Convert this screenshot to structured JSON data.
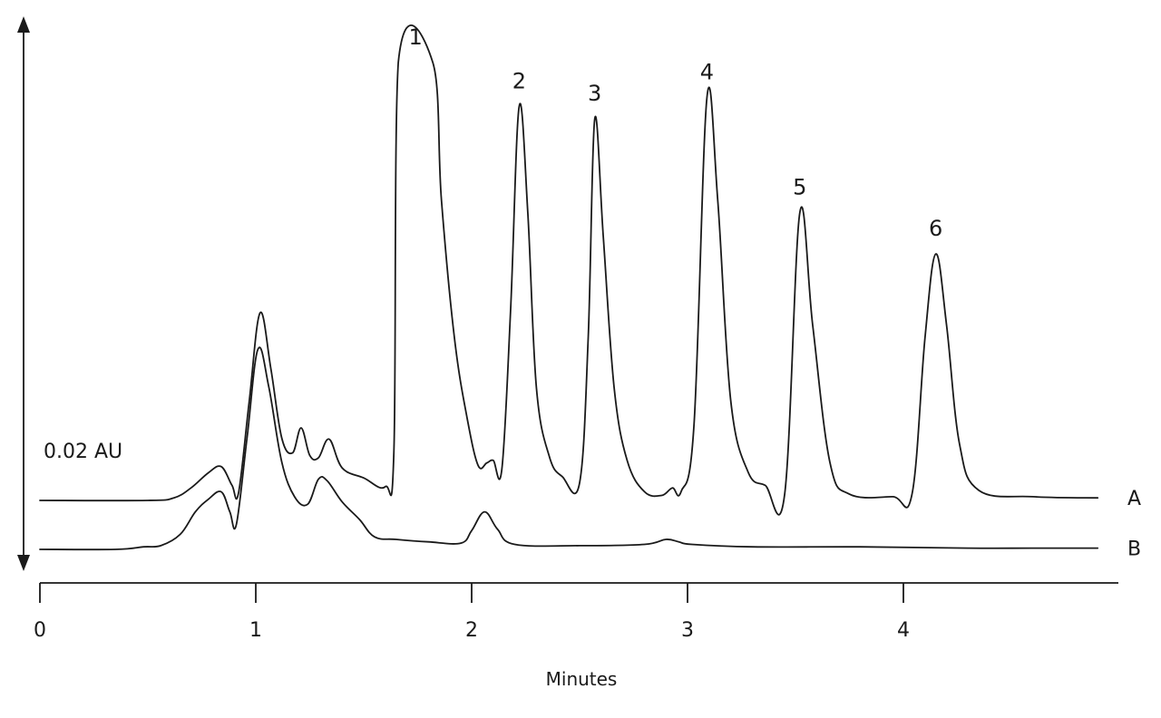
{
  "chart_data": {
    "type": "line",
    "title": "",
    "xlabel": "Minutes",
    "ylabel": "",
    "x_ticks": [
      "0",
      "1",
      "2",
      "3",
      "4"
    ],
    "xlim": [
      0,
      5
    ],
    "scale_bar_label": "0.02 AU",
    "series": [
      {
        "name": "A",
        "points": [
          [
            0.0,
            0.0
          ],
          [
            0.5,
            0.0
          ],
          [
            0.62,
            0.02
          ],
          [
            0.7,
            0.1
          ],
          [
            0.78,
            0.22
          ],
          [
            0.84,
            0.27
          ],
          [
            0.89,
            0.12
          ],
          [
            0.92,
            0.06
          ],
          [
            0.97,
            0.8
          ],
          [
            1.02,
            1.5
          ],
          [
            1.07,
            1.05
          ],
          [
            1.12,
            0.5
          ],
          [
            1.17,
            0.38
          ],
          [
            1.21,
            0.58
          ],
          [
            1.25,
            0.36
          ],
          [
            1.29,
            0.34
          ],
          [
            1.34,
            0.49
          ],
          [
            1.4,
            0.26
          ],
          [
            1.5,
            0.18
          ],
          [
            1.6,
            0.11
          ],
          [
            1.64,
            0.4
          ],
          [
            1.66,
            3.5
          ],
          [
            1.82,
            3.5
          ],
          [
            1.86,
            2.4
          ],
          [
            1.92,
            1.3
          ],
          [
            1.98,
            0.65
          ],
          [
            2.03,
            0.28
          ],
          [
            2.07,
            0.3
          ],
          [
            2.1,
            0.32
          ],
          [
            2.14,
            0.25
          ],
          [
            2.18,
            1.5
          ],
          [
            2.22,
            3.15
          ],
          [
            2.26,
            2.3
          ],
          [
            2.3,
            0.9
          ],
          [
            2.36,
            0.35
          ],
          [
            2.42,
            0.19
          ],
          [
            2.5,
            0.14
          ],
          [
            2.54,
            1.3
          ],
          [
            2.57,
            3.05
          ],
          [
            2.61,
            2.1
          ],
          [
            2.66,
            0.9
          ],
          [
            2.72,
            0.32
          ],
          [
            2.8,
            0.07
          ],
          [
            2.88,
            0.04
          ],
          [
            2.93,
            0.1
          ],
          [
            2.97,
            0.07
          ],
          [
            3.03,
            0.6
          ],
          [
            3.09,
            3.22
          ],
          [
            3.14,
            2.4
          ],
          [
            3.2,
            0.8
          ],
          [
            3.28,
            0.23
          ],
          [
            3.36,
            0.12
          ],
          [
            3.45,
            0.05
          ],
          [
            3.52,
            2.3
          ],
          [
            3.58,
            1.4
          ],
          [
            3.66,
            0.3
          ],
          [
            3.75,
            0.05
          ],
          [
            3.95,
            0.03
          ],
          [
            4.04,
            0.05
          ],
          [
            4.1,
            1.3
          ],
          [
            4.15,
            1.97
          ],
          [
            4.2,
            1.4
          ],
          [
            4.26,
            0.45
          ],
          [
            4.35,
            0.08
          ],
          [
            4.6,
            0.03
          ],
          [
            4.9,
            0.02
          ]
        ]
      },
      {
        "name": "B",
        "points": [
          [
            0.0,
            0.0
          ],
          [
            0.35,
            0.0
          ],
          [
            0.48,
            0.02
          ],
          [
            0.56,
            0.03
          ],
          [
            0.65,
            0.12
          ],
          [
            0.72,
            0.3
          ],
          [
            0.78,
            0.4
          ],
          [
            0.84,
            0.46
          ],
          [
            0.88,
            0.3
          ],
          [
            0.91,
            0.2
          ],
          [
            0.96,
            0.9
          ],
          [
            1.01,
            1.6
          ],
          [
            1.06,
            1.3
          ],
          [
            1.12,
            0.7
          ],
          [
            1.18,
            0.42
          ],
          [
            1.24,
            0.36
          ],
          [
            1.29,
            0.56
          ],
          [
            1.33,
            0.55
          ],
          [
            1.4,
            0.38
          ],
          [
            1.48,
            0.24
          ],
          [
            1.55,
            0.1
          ],
          [
            1.65,
            0.08
          ],
          [
            1.8,
            0.06
          ],
          [
            1.95,
            0.05
          ],
          [
            2.0,
            0.15
          ],
          [
            2.06,
            0.3
          ],
          [
            2.12,
            0.16
          ],
          [
            2.2,
            0.04
          ],
          [
            2.5,
            0.03
          ],
          [
            2.8,
            0.04
          ],
          [
            2.9,
            0.08
          ],
          [
            2.96,
            0.06
          ],
          [
            3.02,
            0.04
          ],
          [
            3.3,
            0.02
          ],
          [
            3.8,
            0.02
          ],
          [
            4.3,
            0.01
          ],
          [
            4.6,
            0.01
          ],
          [
            4.9,
            0.01
          ]
        ]
      }
    ],
    "peak_labels": [
      {
        "label": "1",
        "x": 1.74,
        "y": 3.5
      },
      {
        "label": "2",
        "x": 2.22,
        "y": 3.15
      },
      {
        "label": "3",
        "x": 2.57,
        "y": 3.05
      },
      {
        "label": "4",
        "x": 3.09,
        "y": 3.22
      },
      {
        "label": "5",
        "x": 3.52,
        "y": 2.3
      },
      {
        "label": "6",
        "x": 4.15,
        "y": 1.97
      }
    ]
  }
}
